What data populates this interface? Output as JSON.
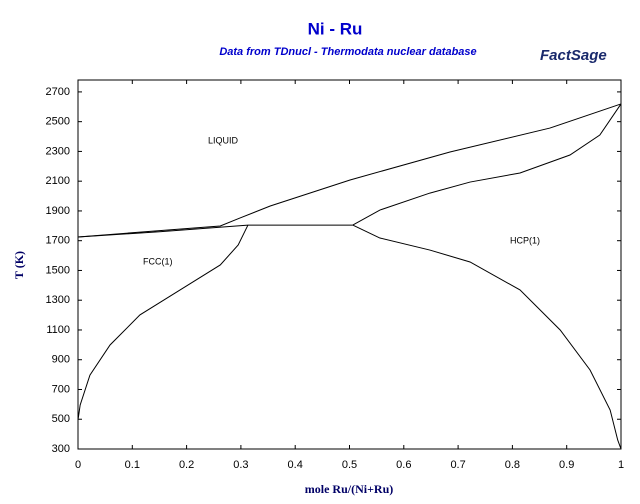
{
  "chart_data": {
    "type": "line",
    "title": "Ni - Ru",
    "subtitle": "Data from TDnucl - Thermodata nuclear database",
    "logo": "FactSage",
    "x_label": "mole Ru/(Ni+Ru)",
    "y_label": "T (K)",
    "annotations": [
      "LIQUID",
      "FCC(1)",
      "HCP(1)"
    ],
    "xlim": [
      0,
      1
    ],
    "ylim": [
      300,
      2780
    ],
    "xticks": [
      0,
      0.1,
      0.2,
      0.3,
      0.4,
      0.5,
      0.6,
      0.7,
      0.8,
      0.9,
      1
    ],
    "yticks": [
      300,
      500,
      700,
      900,
      1100,
      1300,
      1500,
      1700,
      1900,
      2100,
      2300,
      2500,
      2700
    ],
    "grid": false,
    "series": [
      {
        "color": "#000000",
        "x": [
          0,
          0.262,
          0.298,
          0.354,
          0.501,
          0.685,
          0.869,
          1
        ],
        "values": [
          1725,
          1799,
          1852,
          1933,
          2108,
          2296,
          2457,
          2619
        ]
      },
      {
        "color": "#000000",
        "x": [
          0,
          0.15,
          0.313
        ],
        "values": [
          1725,
          1760,
          1805
        ]
      },
      {
        "color": "#000000",
        "x": [
          0.313,
          0.506
        ],
        "values": [
          1805,
          1805
        ]
      },
      {
        "color": "#000000",
        "x": [
          0.506,
          0.556,
          0.648,
          0.722,
          0.814,
          0.906,
          0.961,
          1
        ],
        "values": [
          1805,
          1906,
          2020,
          2094,
          2155,
          2276,
          2410,
          2619
        ]
      },
      {
        "color": "#000000",
        "x": [
          0.313,
          0.295,
          0.262,
          0.188,
          0.114,
          0.059,
          0.022,
          0.004,
          0
        ],
        "values": [
          1805,
          1671,
          1537,
          1369,
          1201,
          999,
          797,
          596,
          495
        ]
      },
      {
        "color": "#000000",
        "x": [
          0.506,
          0.556,
          0.648,
          0.722,
          0.814,
          0.888,
          0.943,
          0.98,
          0.994,
          1
        ],
        "values": [
          1805,
          1718,
          1637,
          1557,
          1369,
          1100,
          831,
          562,
          360,
          300
        ]
      }
    ]
  }
}
